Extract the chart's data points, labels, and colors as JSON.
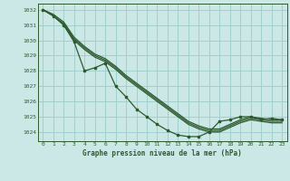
{
  "background_color": "#cce8e6",
  "grid_color": "#99ccc9",
  "line_color": "#2d5a2d",
  "xlim": [
    -0.5,
    23.5
  ],
  "ylim": [
    1023.4,
    1032.4
  ],
  "yticks": [
    1024,
    1025,
    1026,
    1027,
    1028,
    1029,
    1030,
    1031,
    1032
  ],
  "xticks": [
    0,
    1,
    2,
    3,
    4,
    5,
    6,
    7,
    8,
    9,
    10,
    11,
    12,
    13,
    14,
    15,
    16,
    17,
    18,
    19,
    20,
    21,
    22,
    23
  ],
  "xlabel": "Graphe pression niveau de la mer (hPa)",
  "series": [
    {
      "x": [
        0,
        1,
        2,
        3,
        4,
        5,
        6,
        7,
        8,
        9,
        10,
        11,
        12,
        13,
        14,
        15,
        16,
        17,
        18,
        19,
        20,
        21,
        22,
        23
      ],
      "y": [
        1032.0,
        1031.7,
        1031.2,
        1030.2,
        1029.6,
        1029.1,
        1028.8,
        1028.3,
        1027.7,
        1027.2,
        1026.7,
        1026.2,
        1025.7,
        1025.2,
        1024.7,
        1024.4,
        1024.2,
        1024.2,
        1024.5,
        1024.8,
        1025.0,
        1024.9,
        1024.8,
        1024.8
      ],
      "has_markers": false
    },
    {
      "x": [
        0,
        1,
        2,
        3,
        4,
        5,
        6,
        7,
        8,
        9,
        10,
        11,
        12,
        13,
        14,
        15,
        16,
        17,
        18,
        19,
        20,
        21,
        22,
        23
      ],
      "y": [
        1032.0,
        1031.6,
        1031.1,
        1030.1,
        1029.5,
        1029.0,
        1028.7,
        1028.2,
        1027.6,
        1027.1,
        1026.6,
        1026.1,
        1025.6,
        1025.1,
        1024.6,
        1024.3,
        1024.1,
        1024.1,
        1024.4,
        1024.7,
        1024.9,
        1024.8,
        1024.7,
        1024.7
      ],
      "has_markers": false
    },
    {
      "x": [
        0,
        1,
        2,
        3,
        4,
        5,
        6,
        7,
        8,
        9,
        10,
        11,
        12,
        13,
        14,
        15,
        16,
        17,
        18,
        19,
        20,
        21,
        22,
        23
      ],
      "y": [
        1032.0,
        1031.6,
        1031.0,
        1030.0,
        1029.4,
        1028.9,
        1028.6,
        1028.1,
        1027.5,
        1027.0,
        1026.5,
        1026.0,
        1025.5,
        1025.0,
        1024.5,
        1024.2,
        1024.0,
        1024.0,
        1024.3,
        1024.6,
        1024.8,
        1024.7,
        1024.6,
        1024.6
      ],
      "has_markers": false
    },
    {
      "x": [
        0,
        1,
        2,
        3,
        4,
        5,
        6,
        7,
        8,
        9,
        10,
        11,
        12,
        13,
        14,
        15,
        16,
        17,
        18,
        19,
        20,
        21,
        22,
        23
      ],
      "y": [
        1032.0,
        1031.6,
        1031.0,
        1029.9,
        1028.0,
        1028.2,
        1028.5,
        1027.0,
        1026.3,
        1025.5,
        1025.0,
        1024.5,
        1024.1,
        1023.8,
        1023.7,
        1023.7,
        1024.0,
        1024.7,
        1024.8,
        1025.0,
        1025.0,
        1024.8,
        1024.9,
        1024.8
      ],
      "has_markers": true
    }
  ]
}
